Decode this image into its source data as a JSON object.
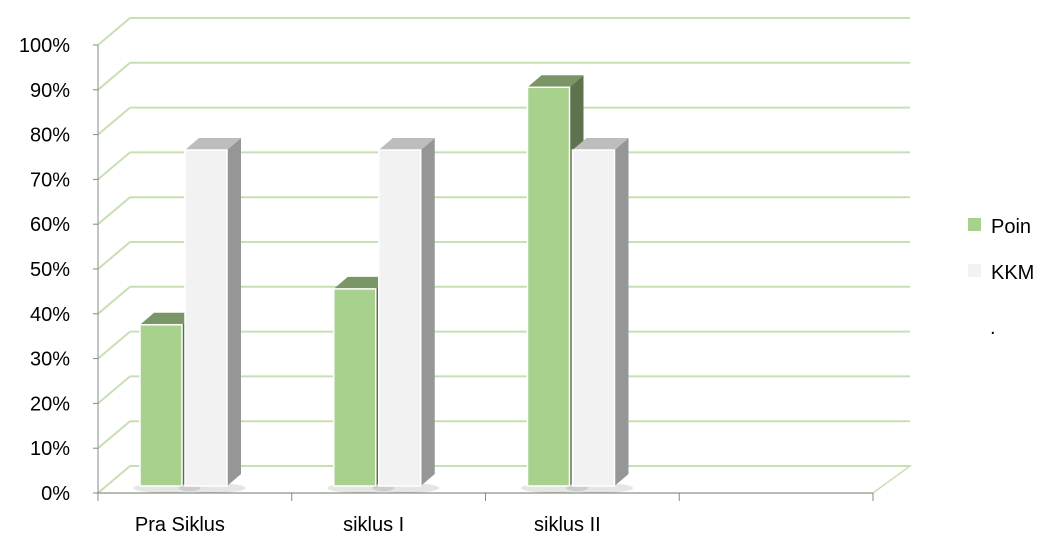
{
  "chart_data": {
    "type": "bar",
    "style": "3d-clustered-column",
    "categories": [
      "Pra Siklus",
      "siklus I",
      "siklus II",
      ""
    ],
    "series": [
      {
        "name": "Poin",
        "values": [
          36,
          44,
          89,
          null
        ],
        "color": "#a9d18e"
      },
      {
        "name": "KKM",
        "values": [
          75,
          75,
          75,
          null
        ],
        "color": "#f2f2f2"
      }
    ],
    "extra_legend_entry": ".",
    "y_ticks": [
      "0%",
      "10%",
      "20%",
      "30%",
      "40%",
      "50%",
      "60%",
      "70%",
      "80%",
      "90%",
      "100%"
    ],
    "ylim": [
      0,
      100
    ],
    "grid": true,
    "grid_color": "#c6e0b4",
    "legend_position": "right"
  }
}
